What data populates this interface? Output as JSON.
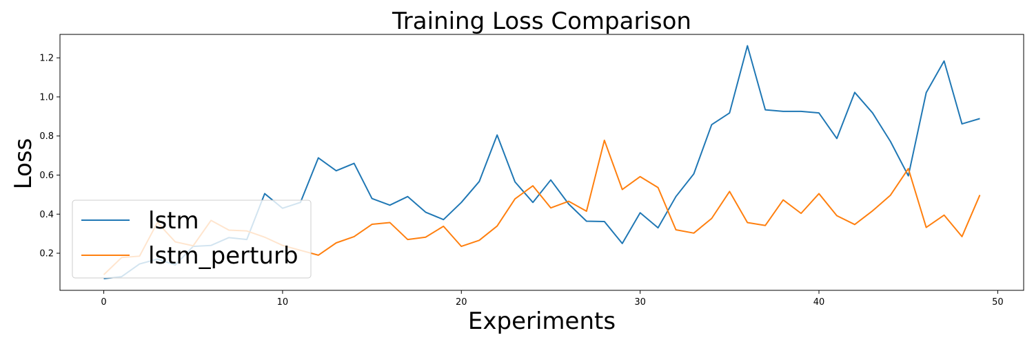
{
  "chart_data": {
    "type": "line",
    "title": "Training Loss Comparison",
    "xlabel": "Experiments",
    "ylabel": "Loss",
    "xlim": [
      -2.45,
      51.45
    ],
    "ylim": [
      0.01,
      1.32
    ],
    "xticks": [
      0,
      10,
      20,
      30,
      40,
      50
    ],
    "yticks": [
      0.2,
      0.4,
      0.6,
      0.8,
      1.0,
      1.2
    ],
    "ytick_labels": [
      "0.2",
      "0.4",
      "0.6",
      "0.8",
      "1.0",
      "1.2"
    ],
    "grid": false,
    "legend_position": "lower-left",
    "x": [
      0,
      1,
      2,
      3,
      4,
      5,
      6,
      7,
      8,
      9,
      10,
      11,
      12,
      13,
      14,
      15,
      16,
      17,
      18,
      19,
      20,
      21,
      22,
      23,
      24,
      25,
      26,
      27,
      28,
      29,
      30,
      31,
      32,
      33,
      34,
      35,
      36,
      37,
      38,
      39,
      40,
      41,
      42,
      43,
      44,
      45,
      46,
      47,
      48,
      49
    ],
    "series": [
      {
        "name": "lstm",
        "color": "#1f77b4",
        "values": [
          0.07,
          0.08,
          0.145,
          0.17,
          0.14,
          0.235,
          0.24,
          0.28,
          0.27,
          0.505,
          0.43,
          0.46,
          0.688,
          0.622,
          0.66,
          0.48,
          0.446,
          0.49,
          0.41,
          0.372,
          0.46,
          0.567,
          0.805,
          0.565,
          0.46,
          0.575,
          0.452,
          0.364,
          0.362,
          0.25,
          0.407,
          0.33,
          0.49,
          0.606,
          0.858,
          0.918,
          1.262,
          0.934,
          0.926,
          0.926,
          0.918,
          0.787,
          1.023,
          0.918,
          0.772,
          0.596,
          1.022,
          1.184,
          0.862,
          0.889
        ]
      },
      {
        "name": "lstm_perturb",
        "color": "#ff7f0e",
        "values": [
          0.09,
          0.178,
          0.185,
          0.357,
          0.258,
          0.238,
          0.368,
          0.318,
          0.314,
          0.282,
          0.24,
          0.215,
          0.19,
          0.253,
          0.285,
          0.348,
          0.357,
          0.27,
          0.282,
          0.338,
          0.235,
          0.266,
          0.339,
          0.478,
          0.545,
          0.432,
          0.466,
          0.415,
          0.778,
          0.526,
          0.592,
          0.536,
          0.32,
          0.303,
          0.378,
          0.516,
          0.357,
          0.342,
          0.473,
          0.404,
          0.505,
          0.392,
          0.347,
          0.417,
          0.497,
          0.633,
          0.332,
          0.395,
          0.285,
          0.498
        ]
      }
    ]
  }
}
